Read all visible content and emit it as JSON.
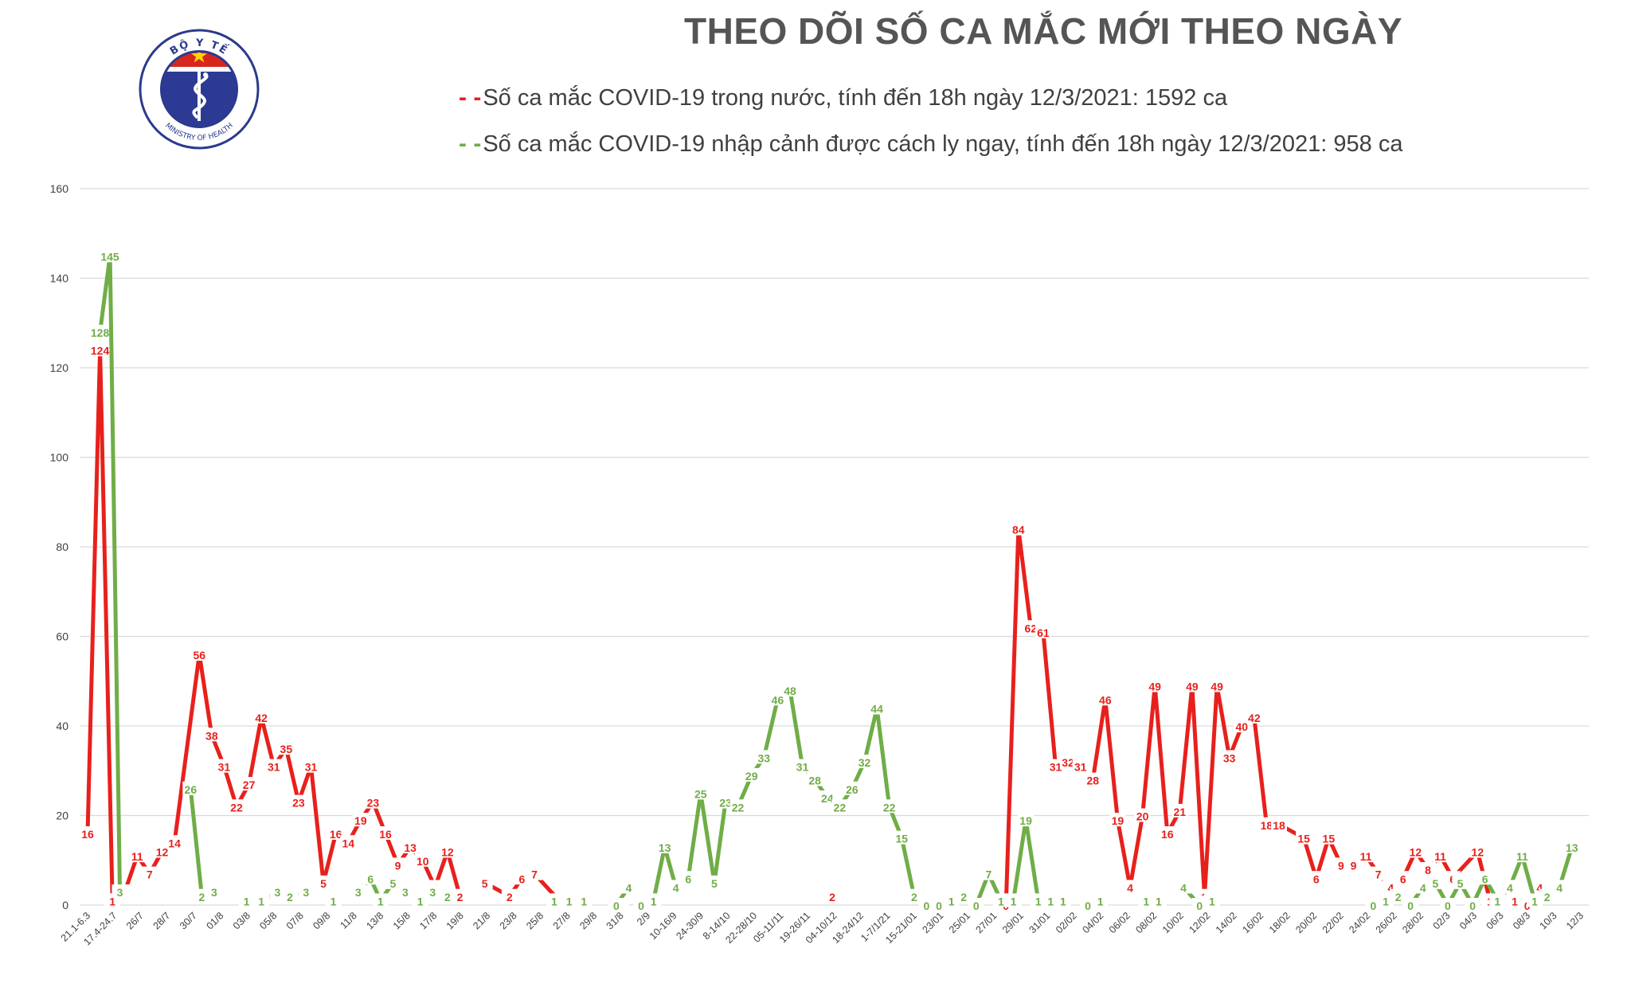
{
  "chart_data": {
    "type": "line",
    "title": "THEO DÕI SỐ CA MẮC MỚI THEO NGÀY",
    "xlabel": "",
    "ylabel": "",
    "ylim": [
      0,
      160
    ],
    "yticks": [
      0,
      20,
      40,
      60,
      80,
      100,
      120,
      140,
      160
    ],
    "grid": "horizontal",
    "legend_placement": "top",
    "x_tick_labels": [
      "21.1-6.3",
      "17.4-24.7",
      "26/7",
      "28/7",
      "30/7",
      "01/8",
      "03/8",
      "05/8",
      "07/8",
      "09/8",
      "11/8",
      "13/8",
      "15/8",
      "17/8",
      "19/8",
      "21/8",
      "23/8",
      "25/8",
      "27/8",
      "29/8",
      "31/8",
      "2/9",
      "10-16/9",
      "24-30/9",
      "8-14/10",
      "22-28/10",
      "05-11/11",
      "19-26/11",
      "04-10/12",
      "18-24/12",
      "1-7/1/21",
      "15-21/01",
      "23/01",
      "25/01",
      "27/01",
      "29/01",
      "31/01",
      "02/02",
      "04/02",
      "06/02",
      "08/02",
      "10/02",
      "12/02",
      "14/02",
      "16/02",
      "18/02",
      "20/02",
      "22/02",
      "24/02",
      "26/02",
      "28/02",
      "02/3",
      "04/3",
      "06/3",
      "08/3",
      "10/3",
      "12/3"
    ],
    "series": [
      {
        "name": "Số ca mắc COVID-19 trong nước, tính đến 18h ngày 12/3/2021: 1592 ca",
        "color": "#e8201c",
        "points": [
          [
            0,
            16
          ],
          [
            1,
            124
          ],
          [
            2,
            1
          ],
          [
            3,
            3
          ],
          [
            4,
            11
          ],
          [
            5,
            7
          ],
          [
            6,
            12
          ],
          [
            7,
            14
          ],
          [
            9,
            56
          ],
          [
            10,
            38
          ],
          [
            11,
            31
          ],
          [
            12,
            22
          ],
          [
            13,
            27
          ],
          [
            14,
            42
          ],
          [
            15,
            31
          ],
          [
            16,
            35
          ],
          [
            17,
            23
          ],
          [
            18,
            31
          ],
          [
            19,
            5
          ],
          [
            20,
            16
          ],
          [
            21,
            14
          ],
          [
            22,
            19
          ],
          [
            23,
            23
          ],
          [
            24,
            16
          ],
          [
            25,
            9
          ],
          [
            26,
            13
          ],
          [
            27,
            10
          ],
          [
            28,
            4
          ],
          [
            29,
            12
          ],
          [
            30,
            2
          ],
          [
            null,
            null
          ],
          [
            32,
            5
          ],
          [
            34,
            2
          ],
          [
            35,
            6
          ],
          [
            36,
            7
          ],
          [
            38,
            1
          ],
          [
            39,
            1
          ],
          [
            40,
            1
          ],
          [
            null,
            null
          ],
          [
            43,
            1
          ],
          [
            null,
            null
          ],
          [
            60,
            2
          ],
          [
            null,
            null
          ],
          [
            74,
            0
          ],
          [
            75,
            84
          ],
          [
            76,
            62
          ],
          [
            77,
            61
          ],
          [
            78,
            31
          ],
          [
            79,
            32
          ],
          [
            80,
            31
          ],
          [
            null,
            null
          ],
          [
            81,
            28
          ],
          [
            82,
            46
          ],
          [
            83,
            19
          ],
          [
            84,
            4
          ],
          [
            85,
            20
          ],
          [
            86,
            49
          ],
          [
            87,
            16
          ],
          [
            88,
            21
          ],
          [
            89,
            49
          ],
          [
            90,
            2
          ],
          [
            91,
            49
          ],
          [
            92,
            33
          ],
          [
            93,
            40
          ],
          [
            94,
            42
          ],
          [
            95,
            18
          ],
          [
            96,
            18
          ],
          [
            98,
            15
          ],
          [
            99,
            6
          ],
          [
            100,
            15
          ],
          [
            101,
            9
          ],
          [
            102,
            9
          ],
          [
            103,
            11
          ],
          [
            104,
            7
          ],
          [
            105,
            4
          ],
          [
            106,
            6
          ],
          [
            107,
            12
          ],
          [
            108,
            8
          ],
          [
            109,
            11
          ],
          [
            110,
            6
          ],
          [
            112,
            12
          ],
          [
            113,
            1
          ],
          [
            114,
            1
          ],
          [
            115,
            1
          ],
          [
            116,
            0
          ],
          [
            117,
            4
          ]
        ]
      },
      {
        "name": "Số ca mắc COVID-19 nhập cảnh được cách ly ngay, tính đến 18h ngày 12/3/2021: 958 ca",
        "color": "#70ad47",
        "points": [
          [
            1,
            128
          ],
          [
            1.8,
            145
          ],
          [
            2.6,
            3
          ],
          [
            null,
            null
          ],
          [
            8.3,
            26
          ],
          [
            9.2,
            2
          ],
          [
            10.2,
            3
          ],
          [
            null,
            null
          ],
          [
            12.8,
            1
          ],
          [
            14,
            1
          ],
          [
            15.3,
            3
          ],
          [
            16.3,
            2
          ],
          [
            17.6,
            3
          ],
          [
            null,
            null
          ],
          [
            19.8,
            1
          ],
          [
            null,
            null
          ],
          [
            21.8,
            3
          ],
          [
            22.8,
            6
          ],
          [
            23.6,
            1
          ],
          [
            24.6,
            5
          ],
          [
            25.6,
            3
          ],
          [
            26.8,
            1
          ],
          [
            27.8,
            3
          ],
          [
            null,
            null
          ],
          [
            29,
            2
          ],
          [
            null,
            null
          ],
          [
            37.6,
            1
          ],
          [
            38.8,
            1
          ],
          [
            40,
            1
          ],
          [
            null,
            null
          ],
          [
            42.6,
            0
          ],
          [
            43.6,
            4
          ],
          [
            null,
            null
          ],
          [
            44.6,
            0
          ],
          [
            45.6,
            1
          ],
          [
            46.5,
            13
          ],
          [
            47.4,
            4
          ],
          [
            48.4,
            6
          ],
          [
            49.4,
            25
          ],
          [
            50.5,
            5
          ],
          [
            51.4,
            23
          ],
          [
            52.4,
            22
          ],
          [
            53.5,
            29
          ],
          [
            54.5,
            33
          ],
          [
            55.6,
            46
          ],
          [
            56.6,
            48
          ],
          [
            57.6,
            31
          ],
          [
            58.6,
            28
          ],
          [
            59.6,
            24
          ],
          [
            60.6,
            22
          ],
          [
            61.6,
            26
          ],
          [
            62.6,
            32
          ],
          [
            63.6,
            44
          ],
          [
            64.6,
            22
          ],
          [
            65.6,
            15
          ],
          [
            66.6,
            2
          ],
          [
            67.6,
            0
          ],
          [
            68.6,
            0
          ],
          [
            69.6,
            1
          ],
          [
            70.6,
            2
          ],
          [
            71.6,
            0
          ],
          [
            72.6,
            7
          ],
          [
            73.6,
            1
          ],
          [
            74.6,
            1
          ],
          [
            75.6,
            19
          ],
          [
            76.6,
            1
          ],
          [
            77.6,
            1
          ],
          [
            78.6,
            1
          ],
          [
            null,
            null
          ],
          [
            80.6,
            0
          ],
          [
            81.6,
            1
          ],
          [
            null,
            null
          ],
          [
            85.3,
            1
          ],
          [
            86.3,
            1
          ],
          [
            null,
            null
          ],
          [
            88.3,
            4
          ],
          [
            89.6,
            0
          ],
          [
            90.6,
            1
          ],
          [
            null,
            null
          ],
          [
            103.6,
            0
          ],
          [
            104.6,
            1
          ],
          [
            105.6,
            2
          ],
          [
            106.6,
            0
          ],
          [
            107.6,
            4
          ],
          [
            108.6,
            5
          ],
          [
            109.6,
            0
          ],
          [
            110.6,
            5
          ],
          [
            111.6,
            0
          ],
          [
            112.6,
            6
          ],
          [
            113.6,
            1
          ],
          [
            114.6,
            4
          ],
          [
            115.6,
            11
          ],
          [
            116.6,
            1
          ],
          [
            117.6,
            2
          ],
          [
            118.6,
            4
          ],
          [
            119.6,
            13
          ]
        ]
      }
    ]
  },
  "legend": {
    "red_key": "- -",
    "red_text": "Số ca mắc COVID-19 trong nước, tính đến 18h ngày 12/3/2021: 1592 ca",
    "green_key": "- -",
    "green_text": "Số ca mắc COVID-19 nhập cảnh được cách ly ngay, tính đến 18h ngày 12/3/2021: 958 ca"
  },
  "logo": {
    "top_text": "BỘ Y TẾ",
    "bottom_text": "MINISTRY OF HEALTH",
    "ring_color": "#2b3a8c",
    "inner_color": "#2d3a94",
    "flag_color": "#d7261e",
    "star_color": "#ffd400"
  },
  "colors": {
    "title": "#555555",
    "grid": "#d9d9d9",
    "tick_label": "#404040"
  }
}
